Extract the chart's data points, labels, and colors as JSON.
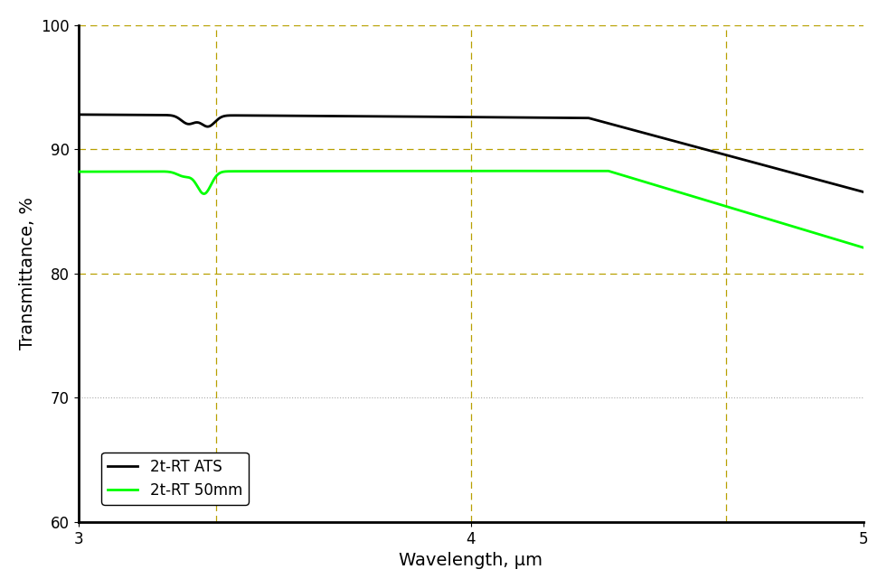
{
  "title": "",
  "xlabel": "Wavelength, μm",
  "ylabel": "Transmittance, %",
  "xlim": [
    3,
    5
  ],
  "ylim": [
    60,
    100
  ],
  "yticks": [
    60,
    70,
    80,
    90,
    100
  ],
  "xticks": [
    3,
    4,
    5
  ],
  "line1_label": "2t-RT ATS",
  "line1_color": "#000000",
  "line2_label": "2t-RT 50mm",
  "line2_color": "#00ff00",
  "background_color": "#ffffff",
  "grid_color_yellow": "#b8a000",
  "grid_color_gray": "#aaaaaa",
  "linewidth": 2.0
}
